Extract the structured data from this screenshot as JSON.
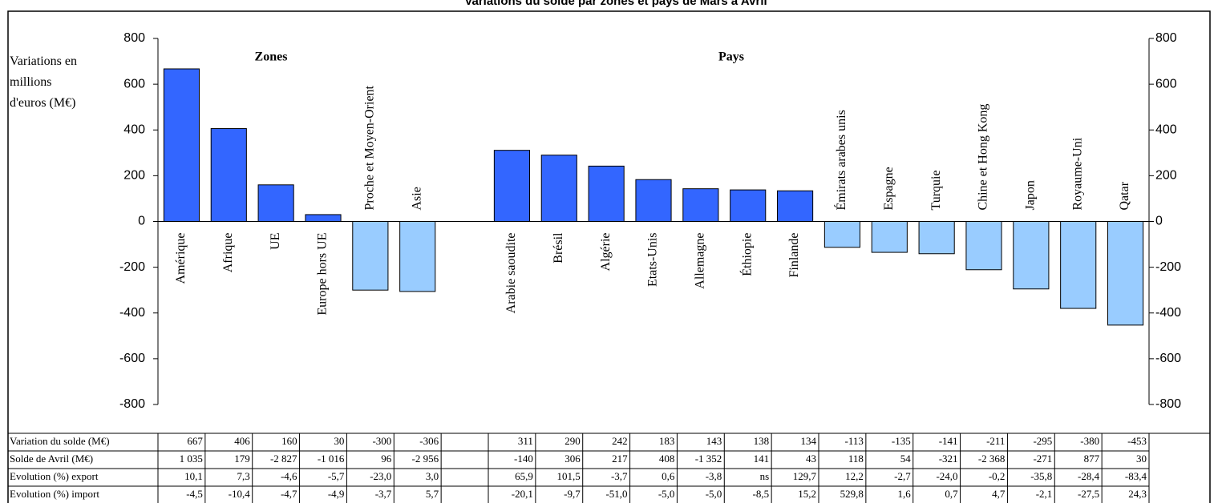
{
  "chart_data": {
    "type": "bar",
    "title": "Variations du solde par zones et pays de Mars à Avril",
    "ylabel": "Variations en millions d'euros (M€)",
    "annotations": [
      "Zones",
      "Pays"
    ],
    "categories": [
      "Amérique",
      "Afrique",
      "UE",
      "Europe hors UE",
      "Proche et Moyen-Orient",
      "Asie",
      null,
      "Arabie saoudite",
      "Brésil",
      "Algérie",
      "Etats-Unis",
      "Allemagne",
      "Éthiopie",
      "Finlande",
      "Émirats arabes unis",
      "Espagne",
      "Turquie",
      "Chine et Hong Kong",
      "Japon",
      "Royaume-Uni",
      "Qatar"
    ],
    "values": [
      667,
      406,
      160,
      30,
      -300,
      -306,
      null,
      311,
      290,
      242,
      183,
      143,
      138,
      134,
      -113,
      -135,
      -141,
      -211,
      -295,
      -380,
      -453
    ],
    "positive_color": "#3366ff",
    "negative_color": "#99ccff",
    "ylim": [
      -800,
      800
    ],
    "yticks": [
      -800,
      -600,
      -400,
      -200,
      0,
      200,
      400,
      600,
      800
    ],
    "y2lim": [
      -800,
      800
    ],
    "y2ticks": [
      -800,
      -600,
      -400,
      -200,
      0,
      200,
      400,
      600,
      800
    ],
    "table": {
      "row_labels": [
        "Variation du solde (M€)",
        "Solde de Avril (M€)",
        "Evolution (%) export",
        "Evolution (%) import"
      ],
      "rows": [
        null,
        [
          "1 035",
          "179",
          "-2 827",
          "-1 016",
          "96",
          "-2 956",
          null,
          "-140",
          "306",
          "217",
          "408",
          "-1 352",
          "141",
          "43",
          "118",
          "54",
          "-321",
          "-2 368",
          "-271",
          "877",
          "30"
        ],
        [
          "10,1",
          "7,3",
          "-4,6",
          "-5,7",
          "-23,0",
          "3,0",
          null,
          "65,9",
          "101,5",
          "-3,7",
          "0,6",
          "-3,8",
          "ns",
          "129,7",
          "12,2",
          "-2,7",
          "-24,0",
          "-0,2",
          "-35,8",
          "-28,4",
          "-83,4"
        ],
        [
          "-4,5",
          "-10,4",
          "-4,7",
          "-4,9",
          "-3,7",
          "5,7",
          null,
          "-20,1",
          "-9,7",
          "-51,0",
          "-5,0",
          "-5,0",
          "-8,5",
          "15,2",
          "529,8",
          "1,6",
          "0,7",
          "4,7",
          "-2,1",
          "-27,5",
          "24,3"
        ]
      ]
    }
  }
}
